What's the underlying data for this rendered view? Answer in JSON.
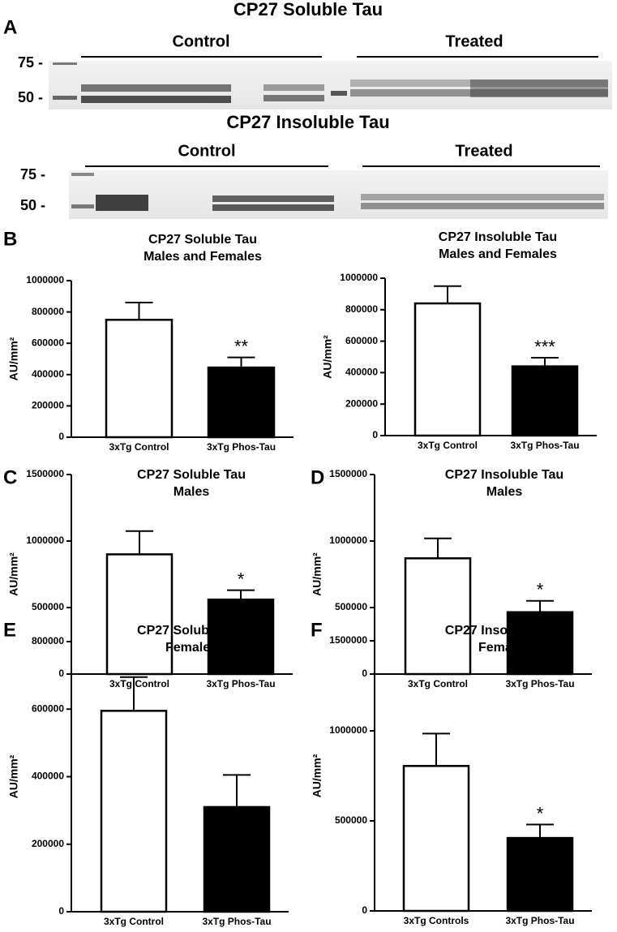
{
  "panel_labels": [
    "A",
    "B",
    "C",
    "D",
    "E",
    "F"
  ],
  "blots": [
    {
      "title": "CP27 Soluble Tau",
      "groups": [
        "Control",
        "Treated"
      ],
      "markers": [
        "75 -",
        "50 -"
      ]
    },
    {
      "title": "CP27 Insoluble Tau",
      "groups": [
        "Control",
        "Treated"
      ],
      "markers": [
        "75 -",
        "50 -"
      ]
    }
  ],
  "chart_data": [
    {
      "type": "bar",
      "title": "CP27 Soluble Tau",
      "subtitle": "Males and Females",
      "ylabel": "AU/mm²",
      "categories": [
        "3xTg Control",
        "3xTg Phos-Tau"
      ],
      "values": [
        750000,
        445000
      ],
      "errors": [
        110000,
        65000
      ],
      "value_annotations": [
        null,
        "**"
      ],
      "colors": [
        "#ffffff",
        "#000000"
      ],
      "ylim": [
        0,
        1000000
      ],
      "yticks": [
        0,
        200000,
        400000,
        600000,
        800000,
        1000000
      ]
    },
    {
      "type": "bar",
      "title": "CP27 Insoluble Tau",
      "subtitle": "Males and Females",
      "ylabel": "AU/mm²",
      "categories": [
        "3xTg Control",
        "3xTg Phos-Tau"
      ],
      "values": [
        840000,
        440000
      ],
      "errors": [
        110000,
        55000
      ],
      "value_annotations": [
        null,
        "***"
      ],
      "colors": [
        "#ffffff",
        "#000000"
      ],
      "ylim": [
        0,
        1000000
      ],
      "yticks": [
        0,
        200000,
        400000,
        600000,
        800000,
        1000000
      ]
    },
    {
      "type": "bar",
      "title": "CP27 Soluble Tau",
      "subtitle": "Males",
      "ylabel": "AU/mm²",
      "categories": [
        "3xTg Control",
        "3xTg Phos-Tau"
      ],
      "values": [
        900000,
        560000
      ],
      "errors": [
        175000,
        70000
      ],
      "value_annotations": [
        null,
        "*"
      ],
      "colors": [
        "#ffffff",
        "#000000"
      ],
      "ylim": [
        0,
        1500000
      ],
      "yticks": [
        0,
        500000,
        1000000,
        1500000
      ]
    },
    {
      "type": "bar",
      "title": "CP27 Insoluble Tau",
      "subtitle": "Males",
      "ylabel": "AU/mm²",
      "categories": [
        "3xTg Control",
        "3xTg Phos-Tau"
      ],
      "values": [
        870000,
        465000
      ],
      "errors": [
        150000,
        85000
      ],
      "value_annotations": [
        null,
        "*"
      ],
      "colors": [
        "#ffffff",
        "#000000"
      ],
      "ylim": [
        0,
        1500000
      ],
      "yticks": [
        0,
        500000,
        1000000,
        1500000
      ]
    },
    {
      "type": "bar",
      "title": "CP27 Soluble Tau",
      "subtitle": "Females",
      "ylabel": "AU/mm²",
      "categories": [
        "3xTg Control",
        "3xTg Phos-Tau"
      ],
      "values": [
        595000,
        310000
      ],
      "errors": [
        100000,
        95000
      ],
      "value_annotations": [
        null,
        null
      ],
      "colors": [
        "#ffffff",
        "#000000"
      ],
      "ylim": [
        0,
        800000
      ],
      "yticks": [
        0,
        200000,
        400000,
        600000,
        800000
      ]
    },
    {
      "type": "bar",
      "title": "CP27 Insoluble Tau",
      "subtitle": "Females",
      "ylabel": "AU/mm²",
      "categories": [
        "3xTg Controls",
        "3xTg Phos-Tau"
      ],
      "values": [
        805000,
        405000
      ],
      "errors": [
        180000,
        75000
      ],
      "value_annotations": [
        null,
        "*"
      ],
      "colors": [
        "#ffffff",
        "#000000"
      ],
      "ylim": [
        0,
        1500000
      ],
      "yticks": [
        0,
        500000,
        1000000,
        1500000
      ]
    }
  ]
}
